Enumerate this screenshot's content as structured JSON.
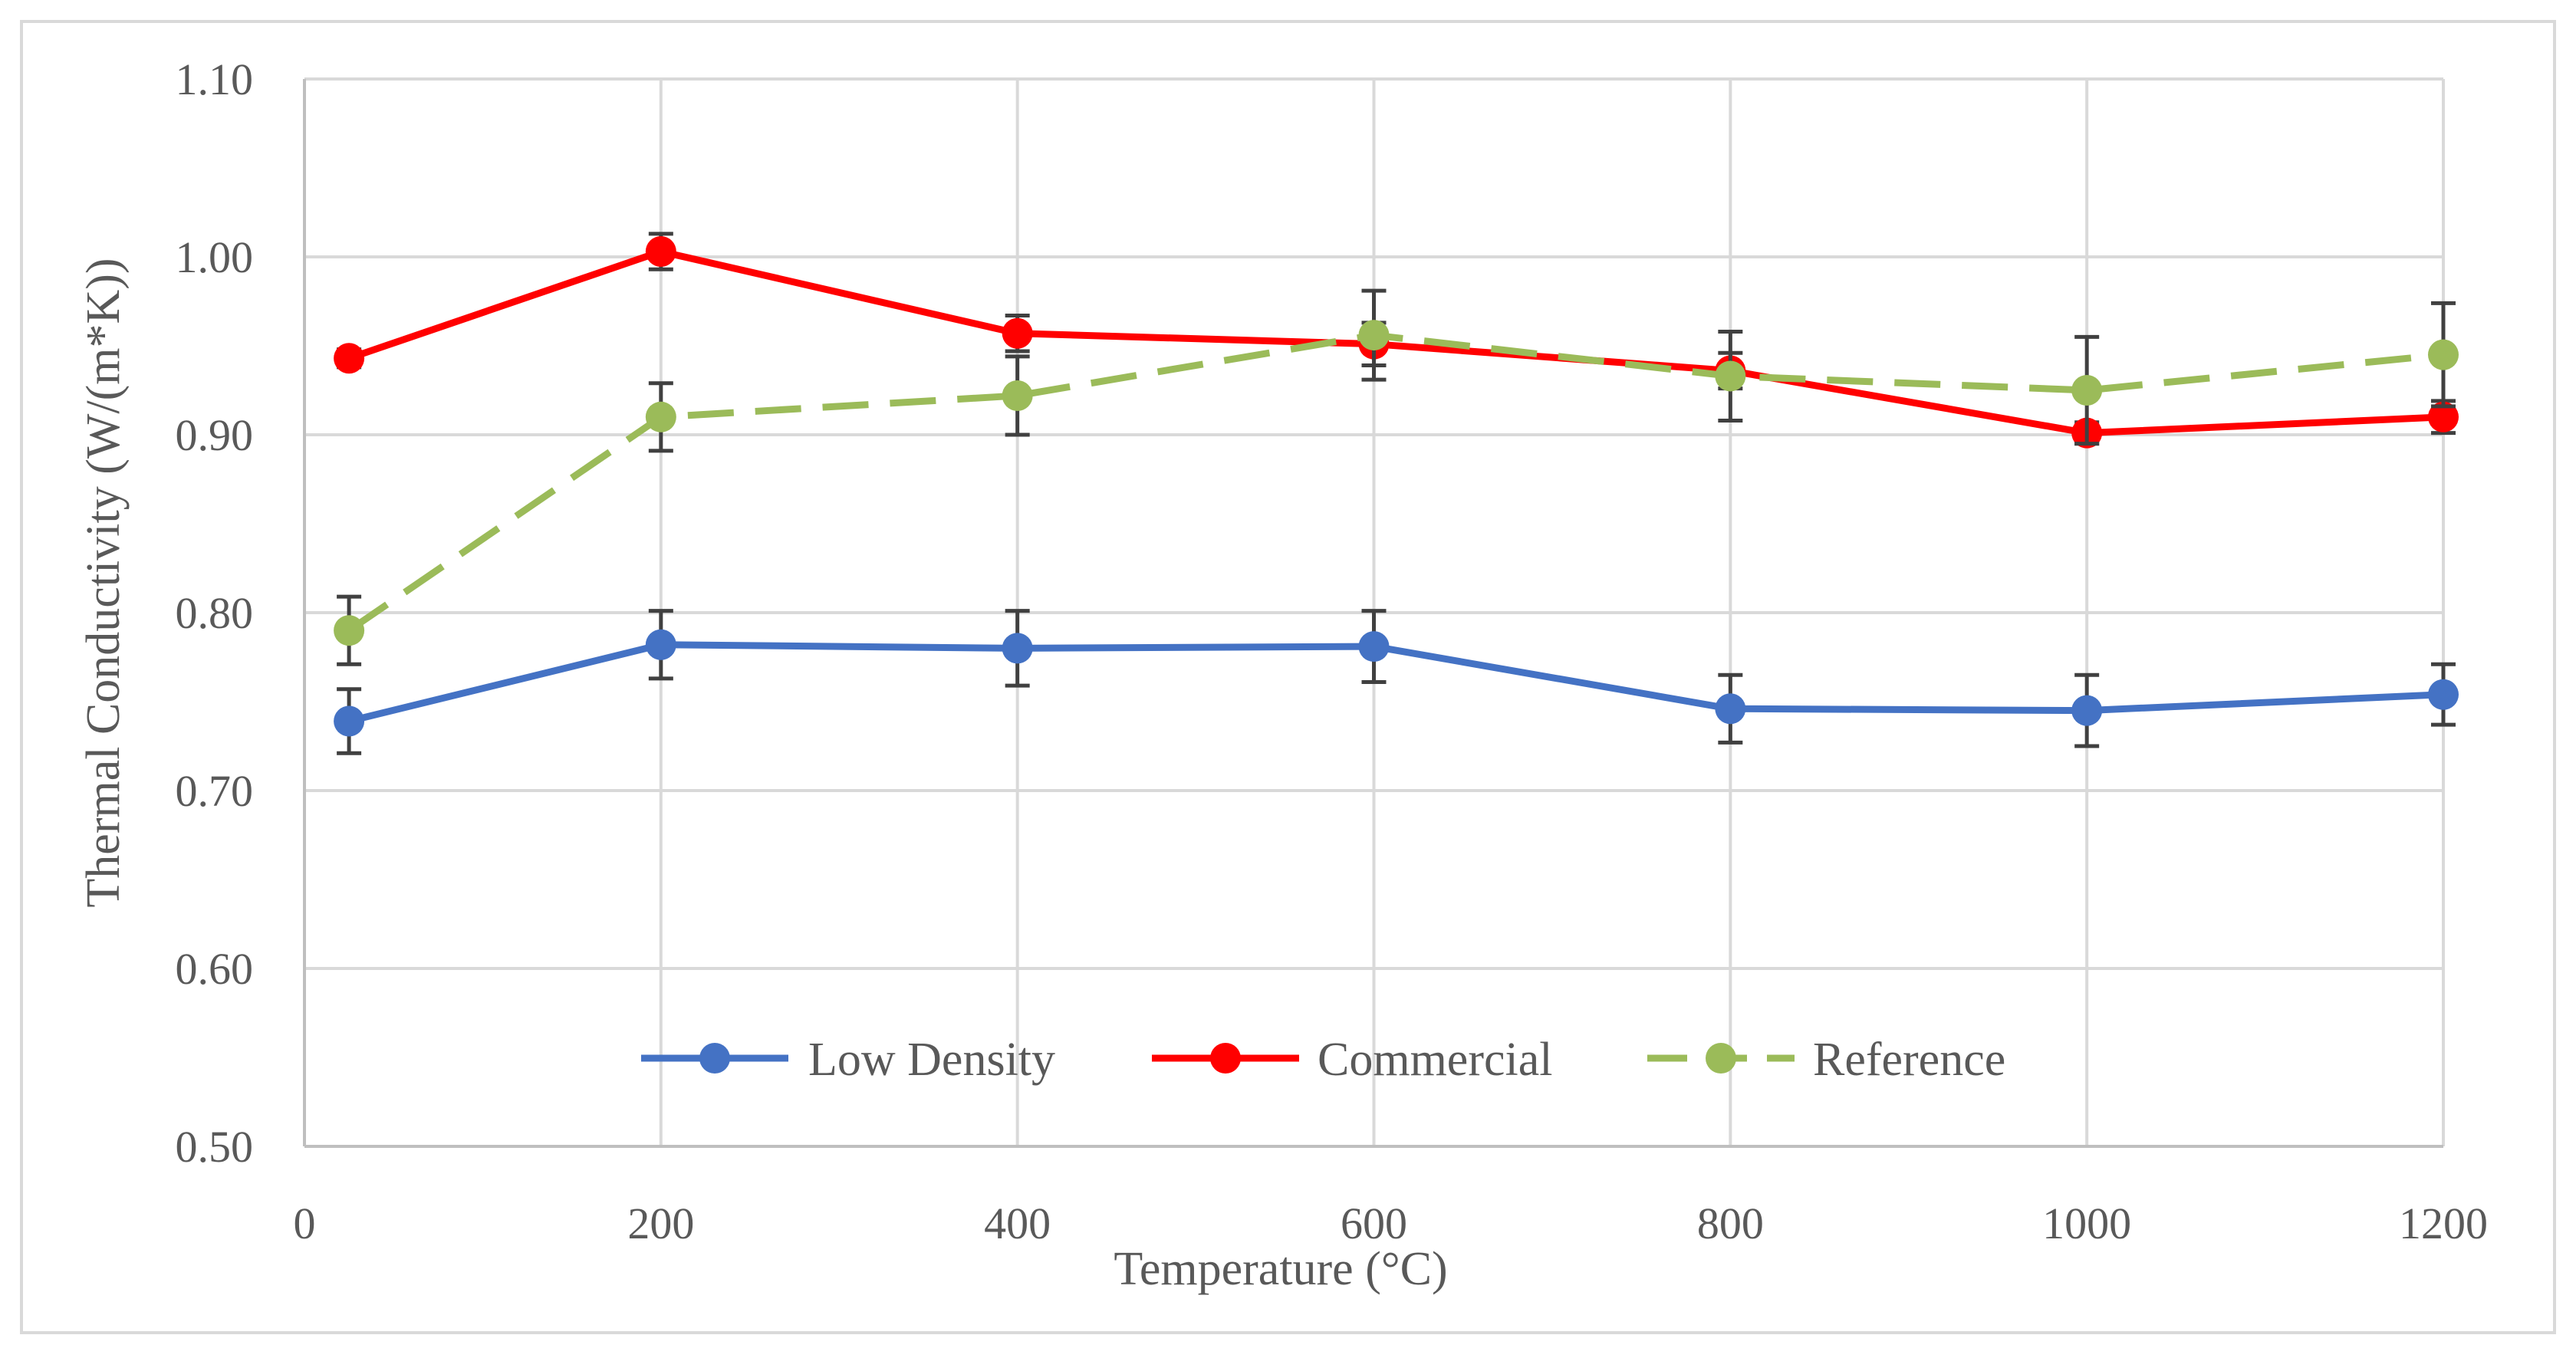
{
  "chart_data": {
    "type": "line",
    "title": "",
    "xlabel": "Temperature (°C)",
    "ylabel": "Thermal Conductivity (W/(m*K))",
    "xlim": [
      0,
      1200
    ],
    "ylim": [
      0.5,
      1.1
    ],
    "x_ticks": [
      0,
      200,
      400,
      600,
      800,
      1000,
      1200
    ],
    "x_tick_labels": [
      "0",
      "200",
      "400",
      "600",
      "800",
      "1000",
      "1200"
    ],
    "y_ticks": [
      0.5,
      0.6,
      0.7,
      0.8,
      0.9,
      1.0,
      1.1
    ],
    "y_tick_labels": [
      "0.50",
      "0.60",
      "0.70",
      "0.80",
      "0.90",
      "1.00",
      "1.10"
    ],
    "grid": true,
    "legend_position": "bottom-inside",
    "series": [
      {
        "name": "Low Density",
        "color": "#4472C4",
        "dash": "solid",
        "x": [
          25,
          200,
          400,
          600,
          800,
          1000,
          1200
        ],
        "y": [
          0.739,
          0.782,
          0.78,
          0.781,
          0.746,
          0.745,
          0.754
        ],
        "error": [
          0.018,
          0.019,
          0.021,
          0.02,
          0.019,
          0.02,
          0.017
        ]
      },
      {
        "name": "Commercial",
        "color": "#FF0000",
        "dash": "solid",
        "x": [
          25,
          200,
          400,
          600,
          800,
          1000,
          1200
        ],
        "y": [
          0.943,
          1.003,
          0.957,
          0.951,
          0.936,
          0.901,
          0.91
        ],
        "error": [
          0.005,
          0.01,
          0.01,
          0.012,
          0.01,
          0.006,
          0.009
        ]
      },
      {
        "name": "Reference",
        "color": "#9BBB59",
        "dash": "dashed",
        "x": [
          25,
          200,
          400,
          600,
          800,
          1000,
          1200
        ],
        "y": [
          0.79,
          0.91,
          0.922,
          0.956,
          0.933,
          0.925,
          0.945
        ],
        "error": [
          0.019,
          0.019,
          0.022,
          0.025,
          0.025,
          0.03,
          0.029
        ]
      }
    ]
  }
}
